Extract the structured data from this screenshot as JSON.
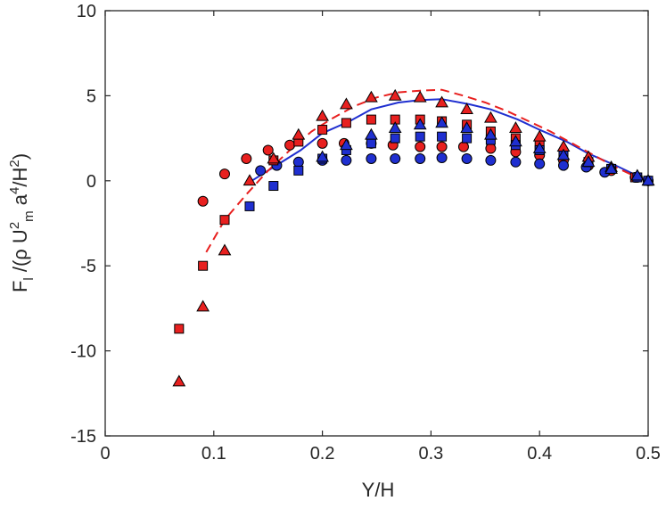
{
  "chart_data": {
    "type": "scatter",
    "xlabel": "Y/H",
    "ylabel": "F_l /(ρ U_m^2 a^4/H^2)",
    "xlim": [
      0,
      0.5
    ],
    "ylim": [
      -15,
      10
    ],
    "xticks": [
      0,
      0.1,
      0.2,
      0.3,
      0.4,
      0.5
    ],
    "xtick_labels": [
      "0",
      "0.1",
      "0.2",
      "0.3",
      "0.4",
      "0.5"
    ],
    "yticks": [
      -15,
      -10,
      -5,
      0,
      5,
      10
    ],
    "ytick_labels": [
      "-15",
      "-10",
      "-5",
      "0",
      "5",
      "10"
    ],
    "grid": false,
    "legend": "none",
    "colors": {
      "red": "#e8201f",
      "blue": "#1f2fd0",
      "edge": "#000000"
    },
    "lines": [
      {
        "color": "#1f2fd0",
        "style": "solid",
        "x": [
          0.135,
          0.155,
          0.18,
          0.2,
          0.225,
          0.245,
          0.27,
          0.29,
          0.31,
          0.335,
          0.355,
          0.38,
          0.4,
          0.425,
          0.445,
          0.47,
          0.49,
          0.5
        ],
        "y": [
          0.0,
          0.8,
          1.8,
          2.8,
          3.5,
          4.2,
          4.6,
          4.75,
          4.8,
          4.5,
          4.2,
          3.6,
          3.0,
          2.3,
          1.6,
          0.9,
          0.3,
          0.0
        ]
      },
      {
        "color": "#e8201f",
        "style": "dashed",
        "x": [
          0.093,
          0.11,
          0.13,
          0.15,
          0.17,
          0.19,
          0.21,
          0.23,
          0.25,
          0.27,
          0.29,
          0.31,
          0.33,
          0.35,
          0.37,
          0.39,
          0.41,
          0.43,
          0.45,
          0.47,
          0.49,
          0.5
        ],
        "y": [
          -4.2,
          -2.3,
          -0.8,
          0.6,
          1.8,
          2.9,
          3.7,
          4.4,
          4.9,
          5.2,
          5.3,
          5.35,
          5.0,
          4.6,
          4.1,
          3.5,
          2.9,
          2.2,
          1.5,
          0.8,
          0.2,
          0.0
        ]
      }
    ],
    "series": [
      {
        "marker": "circle",
        "color": "#e8201f",
        "x": [
          0.09,
          0.11,
          0.13,
          0.15,
          0.17,
          0.2,
          0.22,
          0.245,
          0.265,
          0.29,
          0.31,
          0.33,
          0.355,
          0.378,
          0.4,
          0.422,
          0.445,
          0.466,
          0.488,
          0.5
        ],
        "y": [
          -1.2,
          0.4,
          1.3,
          1.8,
          2.1,
          2.2,
          2.2,
          2.2,
          2.1,
          2.0,
          2.0,
          2.0,
          1.9,
          1.7,
          1.5,
          1.2,
          0.9,
          0.6,
          0.2,
          0.0
        ]
      },
      {
        "marker": "circle",
        "color": "#1f2fd0",
        "x": [
          0.143,
          0.158,
          0.178,
          0.2,
          0.222,
          0.245,
          0.267,
          0.29,
          0.31,
          0.333,
          0.355,
          0.378,
          0.4,
          0.422,
          0.443,
          0.46,
          0.49,
          0.5
        ],
        "y": [
          0.6,
          0.9,
          1.1,
          1.2,
          1.2,
          1.3,
          1.3,
          1.3,
          1.35,
          1.3,
          1.2,
          1.1,
          1.0,
          0.9,
          0.8,
          0.5,
          0.2,
          0.0
        ]
      },
      {
        "marker": "square",
        "color": "#e8201f",
        "x": [
          0.068,
          0.09,
          0.11,
          0.155,
          0.178,
          0.2,
          0.222,
          0.245,
          0.267,
          0.29,
          0.31,
          0.333,
          0.355,
          0.378,
          0.4,
          0.422,
          0.445,
          0.466,
          0.488,
          0.5
        ],
        "y": [
          -8.7,
          -5.0,
          -2.3,
          1.2,
          2.3,
          3.0,
          3.4,
          3.6,
          3.6,
          3.6,
          3.5,
          3.3,
          2.9,
          2.5,
          2.1,
          1.6,
          1.1,
          0.7,
          0.2,
          0.0
        ]
      },
      {
        "marker": "square",
        "color": "#1f2fd0",
        "x": [
          0.133,
          0.155,
          0.178,
          0.2,
          0.222,
          0.245,
          0.267,
          0.29,
          0.31,
          0.333,
          0.355,
          0.378,
          0.4,
          0.422,
          0.445,
          0.466,
          0.49,
          0.5
        ],
        "y": [
          -1.5,
          -0.3,
          0.6,
          1.3,
          1.8,
          2.2,
          2.5,
          2.6,
          2.6,
          2.5,
          2.4,
          2.1,
          1.8,
          1.5,
          1.1,
          0.7,
          0.2,
          0.0
        ]
      },
      {
        "marker": "triangle",
        "color": "#e8201f",
        "x": [
          0.068,
          0.09,
          0.11,
          0.133,
          0.155,
          0.178,
          0.2,
          0.222,
          0.245,
          0.267,
          0.29,
          0.31,
          0.333,
          0.355,
          0.378,
          0.4,
          0.422,
          0.445,
          0.466,
          0.49,
          0.5
        ],
        "y": [
          -11.8,
          -7.4,
          -4.1,
          0.0,
          1.3,
          2.7,
          3.8,
          4.5,
          4.9,
          5.0,
          4.9,
          4.6,
          4.2,
          3.7,
          3.1,
          2.6,
          2.0,
          1.4,
          0.8,
          0.3,
          0.0
        ]
      },
      {
        "marker": "triangle",
        "color": "#1f2fd0",
        "x": [
          0.2,
          0.222,
          0.245,
          0.267,
          0.29,
          0.31,
          0.333,
          0.355,
          0.378,
          0.4,
          0.422,
          0.445,
          0.466,
          0.49,
          0.5
        ],
        "y": [
          1.4,
          2.1,
          2.7,
          3.1,
          3.3,
          3.4,
          3.1,
          2.7,
          2.3,
          1.9,
          1.5,
          1.1,
          0.7,
          0.3,
          0.0
        ]
      }
    ]
  }
}
